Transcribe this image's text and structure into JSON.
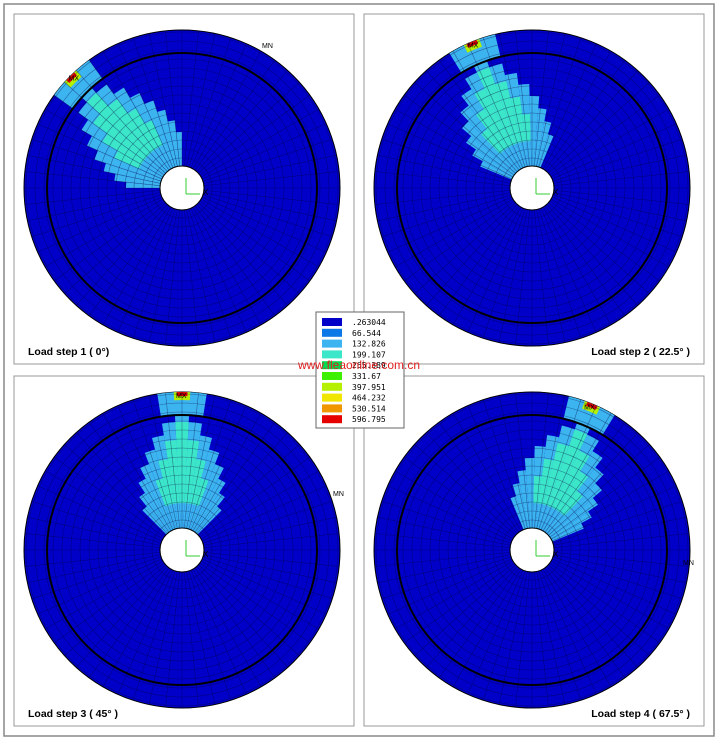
{
  "panels": [
    {
      "label": "Load step 1 ( 0°)",
      "max_label": "MX",
      "min_label": "MN",
      "axis_label": "X"
    },
    {
      "label": "Load step 2 ( 22.5° )",
      "max_label": "MX",
      "axis_label": "X"
    },
    {
      "label": "Load step 3 ( 45° )",
      "max_label": "MX",
      "min_label": "MN",
      "axis_label": "X"
    },
    {
      "label": "Load step 4 ( 67.5° )",
      "max_label": "MX",
      "min_label": "MN",
      "axis_label": "X"
    }
  ],
  "legend": {
    "entries": [
      {
        "label": ".263044",
        "color": "#0000c8"
      },
      {
        "label": "66.544",
        "color": "#0a78e6"
      },
      {
        "label": "132.826",
        "color": "#3cb4f0"
      },
      {
        "label": "199.107",
        "color": "#3ce6c8"
      },
      {
        "label": "265.389",
        "color": "#00dc50"
      },
      {
        "label": "331.67",
        "color": "#3cf000"
      },
      {
        "label": "397.951",
        "color": "#b4f000"
      },
      {
        "label": "464.232",
        "color": "#f0e600"
      },
      {
        "label": "530.514",
        "color": "#f09600"
      },
      {
        "label": "596.795",
        "color": "#e60000"
      }
    ]
  },
  "watermark": "www.fleaonline.com.cn"
}
